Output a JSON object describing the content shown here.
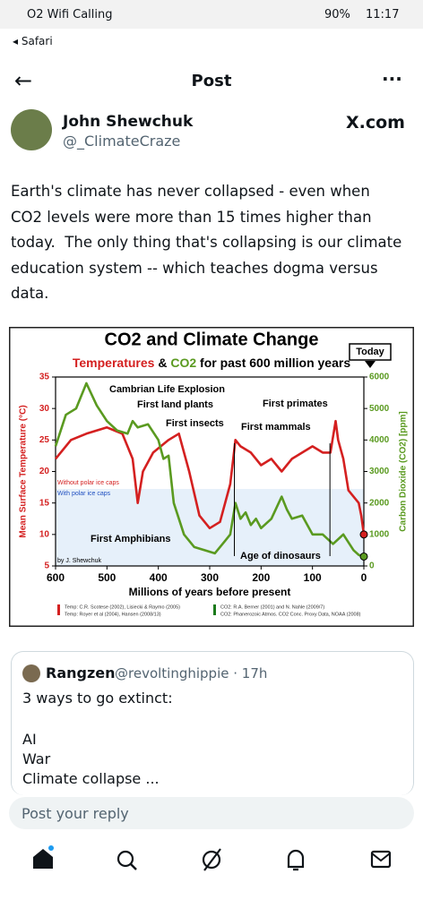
{
  "status_bar": {
    "carrier": "O2 Wifi Calling",
    "battery": "90%",
    "time": "11:17"
  },
  "back_app": "Safari",
  "header": {
    "title": "Post"
  },
  "post": {
    "author": "John Shewchuk",
    "handle": "@_ClimateCraze",
    "source": "X.com",
    "text_lines": [
      "Earth's climate has never collapsed - even when",
      "CO2 levels were more than 15 times higher than",
      "today.  The only thing that's collapsing is our climate",
      "education system -- which teaches dogma versus",
      "data."
    ],
    "image": {
      "chart_data": {
        "type": "line",
        "title": "CO2 and Climate Change",
        "subtitle_parts": [
          "Temperatures",
          "&",
          "CO2",
          "for past 600 million years"
        ],
        "xlabel": "Millions of years before present",
        "ylabel": "Mean Surface Temperature (°C)",
        "y2label": "Carbon Dioxide (CO2) [ppm]",
        "xlim": [
          600,
          0
        ],
        "xticks": [
          600,
          500,
          400,
          300,
          200,
          100,
          0
        ],
        "ylim": [
          5,
          35
        ],
        "yticks": [
          5,
          10,
          15,
          20,
          25,
          30,
          35
        ],
        "y2lim": [
          0,
          6000
        ],
        "y2ticks": [
          0,
          1000,
          2000,
          3000,
          4000,
          5000,
          6000
        ],
        "series": [
          {
            "color": "#d42020",
            "x": [
              600,
              570,
              540,
              500,
              470,
              450,
              440,
              430,
              410,
              380,
              360,
              340,
              320,
              300,
              280,
              260,
              250,
              240,
              220,
              200,
              180,
              160,
              140,
              120,
              100,
              80,
              65,
              55,
              50,
              40,
              30,
              20,
              10,
              5,
              0
            ],
            "values": [
              22,
              25,
              26,
              27,
              26,
              22,
              15,
              20,
              23,
              25,
              26,
              20,
              13,
              11,
              12,
              18,
              25,
              24,
              23,
              21,
              22,
              20,
              22,
              23,
              24,
              23,
              23,
              28,
              25,
              22,
              17,
              16,
              15,
              13,
              10
            ]
          },
          {
            "color": "#5a9a20",
            "axis": "y2",
            "x": [
              600,
              580,
              560,
              540,
              520,
              500,
              480,
              460,
              450,
              440,
              420,
              400,
              390,
              380,
              370,
              350,
              330,
              310,
              290,
              270,
              260,
              250,
              240,
              230,
              220,
              210,
              200,
              180,
              160,
              150,
              140,
              120,
              100,
              80,
              60,
              40,
              20,
              10,
              0
            ],
            "values": [
              3800,
              4800,
              5000,
              5800,
              5100,
              4600,
              4300,
              4200,
              4600,
              4400,
              4500,
              4000,
              3400,
              3500,
              2000,
              1000,
              600,
              500,
              400,
              800,
              1000,
              2000,
              1500,
              1700,
              1300,
              1500,
              1200,
              1500,
              2200,
              1800,
              1500,
              1600,
              1000,
              1000,
              700,
              1000,
              500,
              350,
              300
            ]
          }
        ],
        "annotations": [
          "Cambrian Life Explosion",
          "First land plants",
          "First insects",
          "First mammals",
          "First primates",
          "First Amphibians",
          "Age of dinosaurs",
          "Without polar ice caps",
          "With polar ice caps",
          "by J. Shewchuk",
          "Today"
        ],
        "sources": [
          "Temp: C.R. Scotese (2002), Lisiecki & Raymo (2005)",
          "Temp: Royer et al (2004), Hansen (2008/13)",
          "CO2: R.A. Berner (2001) and N. Nahle (2009/7)",
          "CO2: Phanerozoic Atmos. CO2 Conc. Proxy Data, NOAA (2008)"
        ]
      }
    }
  },
  "reply": {
    "author": "Rangzen",
    "meta": "@revoltinghippie · 17h",
    "lines": [
      "3 ways to go extinct:",
      "AI",
      "War",
      "Climate collapse ..."
    ]
  },
  "composer": {
    "placeholder": "Post your reply"
  }
}
